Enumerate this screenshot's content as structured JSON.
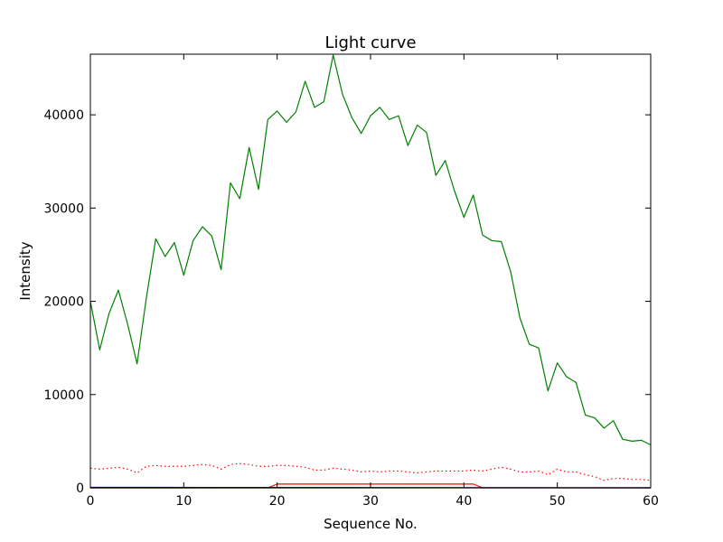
{
  "chart_data": {
    "type": "line",
    "title": "Light curve",
    "xlabel": "Sequence No.",
    "ylabel": "Intensity",
    "xlim": [
      0,
      60
    ],
    "ylim": [
      0,
      46500
    ],
    "x_ticks": [
      0,
      10,
      20,
      30,
      40,
      50,
      60
    ],
    "y_ticks": [
      0,
      10000,
      20000,
      30000,
      40000
    ],
    "grid": false,
    "legend": "none",
    "series": [
      {
        "color": "#008000",
        "style": "solid",
        "x": [
          0,
          1,
          2,
          3,
          4,
          5,
          6,
          7,
          8,
          9,
          10,
          11,
          12,
          13,
          14,
          15,
          16,
          17,
          18,
          19,
          20,
          21,
          22,
          23,
          24,
          25,
          26,
          27,
          28,
          29,
          30,
          31,
          32,
          33,
          34,
          35,
          36,
          37,
          38,
          39,
          40,
          41,
          42,
          43,
          44,
          45,
          46,
          47,
          48,
          49,
          50,
          51,
          52,
          53,
          54,
          55,
          56,
          57,
          58,
          59,
          60
        ],
        "values": [
          20000,
          14800,
          18700,
          21200,
          17500,
          13300,
          20400,
          26700,
          24800,
          26300,
          22800,
          26500,
          28000,
          27000,
          23400,
          32700,
          31000,
          36500,
          32000,
          39500,
          40400,
          39200,
          40300,
          43600,
          40800,
          41400,
          46400,
          42200,
          39700,
          38000,
          39900,
          40800,
          39500,
          39900,
          36700,
          38900,
          38100,
          33500,
          35100,
          31800,
          29000,
          31400,
          27100,
          26500,
          26400,
          23200,
          18200,
          15400,
          15000,
          10400,
          13400,
          11900,
          11300,
          7800,
          7500,
          6400,
          7200,
          5200,
          5000,
          5100,
          4600
        ]
      },
      {
        "color": "#ff0000",
        "style": "dotted",
        "x": [
          0,
          1,
          2,
          3,
          4,
          5,
          6,
          7,
          8,
          9,
          10,
          11,
          12,
          13,
          14,
          15,
          16,
          17,
          18,
          19,
          20,
          21,
          22,
          23,
          24,
          25,
          26,
          27,
          28,
          29,
          30,
          31,
          32,
          33,
          34,
          35,
          36,
          37,
          38,
          39,
          40,
          41,
          42,
          43,
          44,
          45,
          46,
          47,
          48,
          49,
          50,
          51,
          52,
          53,
          54,
          55,
          56,
          57,
          58,
          59,
          60
        ],
        "values": [
          2100,
          2000,
          2100,
          2200,
          2000,
          1600,
          2300,
          2400,
          2300,
          2300,
          2300,
          2400,
          2500,
          2400,
          2000,
          2500,
          2600,
          2500,
          2300,
          2300,
          2400,
          2400,
          2300,
          2200,
          1900,
          1900,
          2100,
          2000,
          1900,
          1700,
          1800,
          1700,
          1800,
          1800,
          1700,
          1600,
          1700,
          1800,
          1800,
          1800,
          1800,
          1900,
          1800,
          2000,
          2200,
          2000,
          1700,
          1700,
          1800,
          1400,
          2000,
          1700,
          1700,
          1400,
          1200,
          800,
          1000,
          1000,
          900,
          900,
          800
        ]
      },
      {
        "color": "#ff0000",
        "style": "solid",
        "x": [
          0,
          19,
          20,
          41,
          42,
          60
        ],
        "values": [
          0,
          0,
          400,
          400,
          0,
          0
        ]
      },
      {
        "color": "#0000ff",
        "style": "solid",
        "x": [
          0,
          1,
          60
        ],
        "values": [
          50,
          50,
          0
        ]
      },
      {
        "color": "#000000",
        "style": "solid",
        "x": [
          0,
          60
        ],
        "values": [
          0,
          0
        ]
      }
    ]
  }
}
